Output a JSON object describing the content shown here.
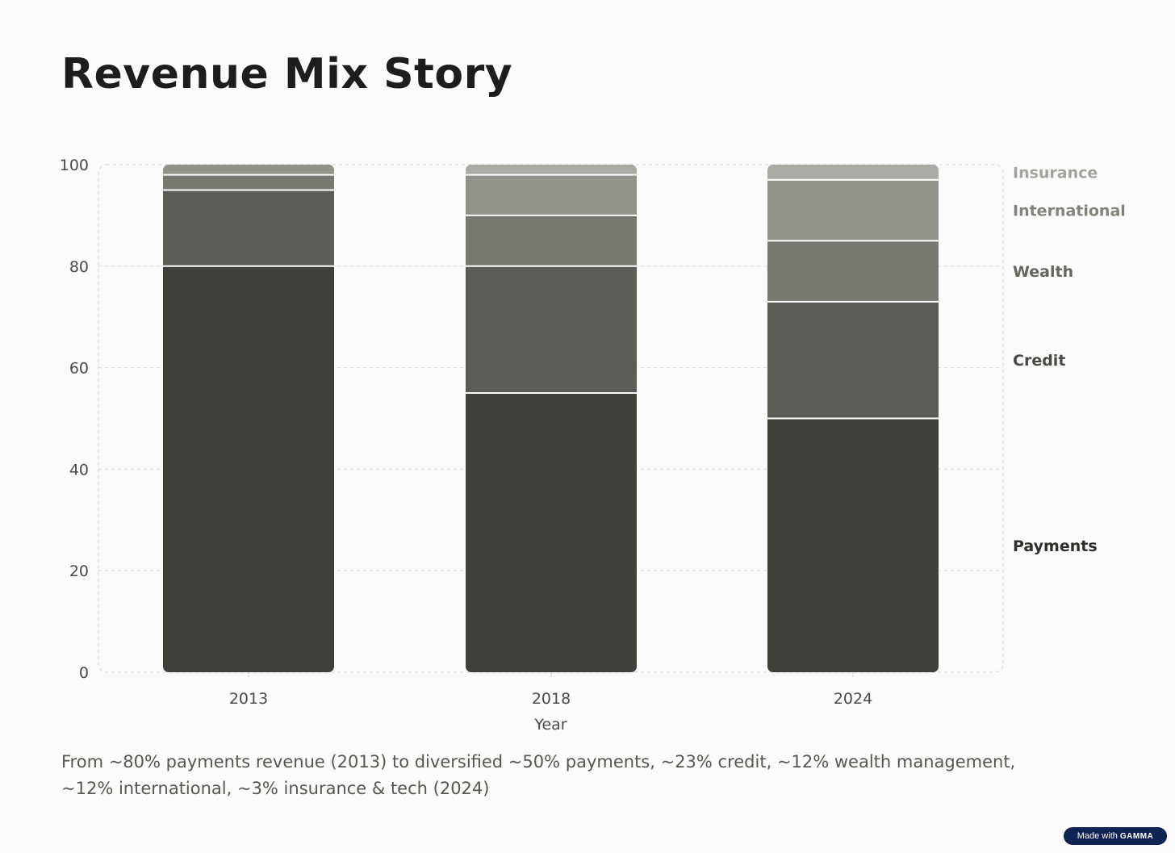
{
  "title": "Revenue Mix Story",
  "caption": "From ~80% payments revenue (2013) to diversified ~50% payments, ~23% credit, ~12% wealth management, ~12% international, ~3% insurance & tech (2024)",
  "badge": {
    "prefix": "Made with",
    "brand": "GAMMA"
  },
  "chart_data": {
    "type": "bar",
    "stacked": true,
    "categories": [
      "2013",
      "2018",
      "2024"
    ],
    "xlabel": "Year",
    "ylabel": "",
    "ylim": [
      0,
      100
    ],
    "yticks": [
      0,
      20,
      40,
      60,
      80,
      100
    ],
    "grid": true,
    "legend": "right",
    "series": [
      {
        "name": "Payments",
        "values": [
          80,
          55,
          50
        ],
        "color": "#40413b",
        "labelColor": "#2e2e2a"
      },
      {
        "name": "Credit",
        "values": [
          15,
          25,
          23
        ],
        "color": "#5b5c55",
        "labelColor": "#4a4a44"
      },
      {
        "name": "Wealth",
        "values": [
          3,
          10,
          12
        ],
        "color": "#787871",
        "labelColor": "#66665f"
      },
      {
        "name": "International",
        "values": [
          2,
          8,
          12
        ],
        "color": "#92928b",
        "labelColor": "#83837c"
      },
      {
        "name": "Insurance",
        "values": [
          0,
          2,
          3
        ],
        "color": "#aaaaa4",
        "labelColor": "#a3a39d"
      }
    ]
  }
}
